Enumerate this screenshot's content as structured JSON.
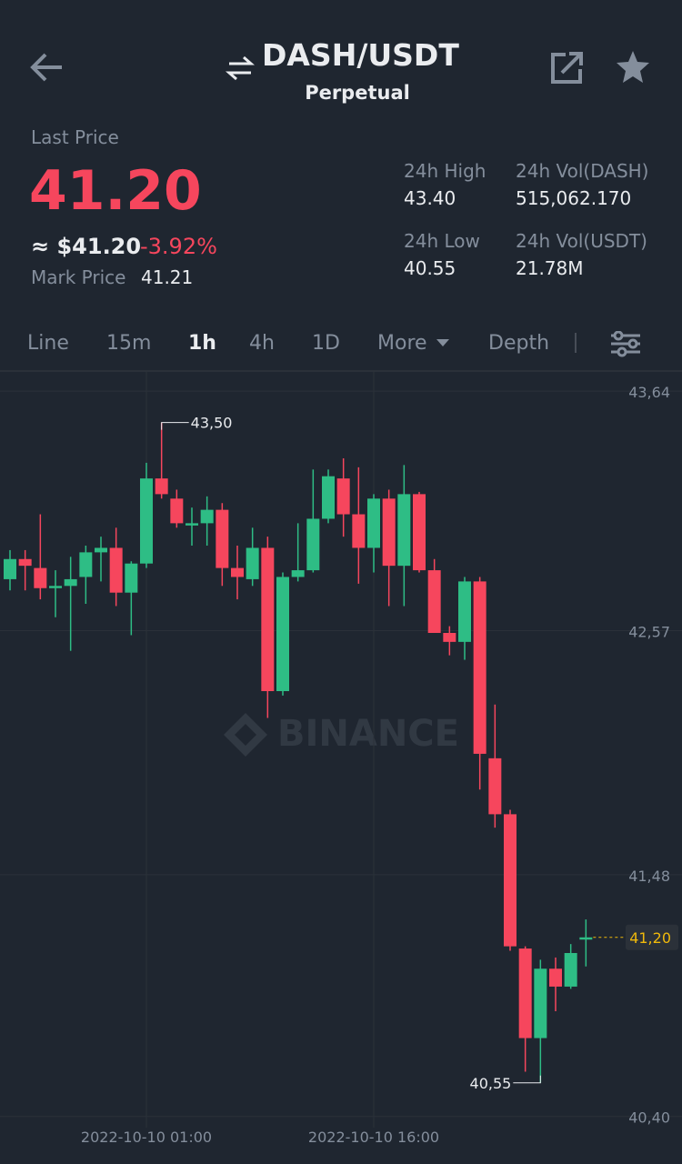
{
  "header": {
    "title": "DASH/USDT",
    "subtitle": "Perpetual"
  },
  "ticker": {
    "last_price_label": "Last Price",
    "last_price": "41.20",
    "approx_price": "≈ $41.20",
    "change": "-3.92%",
    "mark_price_label": "Mark Price",
    "mark_price": "41.21"
  },
  "stats": [
    {
      "label": "24h High",
      "value": "43.40"
    },
    {
      "label": "24h Vol(DASH)",
      "value": "515,062.170"
    },
    {
      "label": "24h Low",
      "value": "40.55"
    },
    {
      "label": "24h Vol(USDT)",
      "value": "21.78M"
    }
  ],
  "tabs": [
    "Line",
    "15m",
    "1h",
    "4h",
    "1D",
    "More",
    "Depth"
  ],
  "active_tab": 2,
  "chart_data": {
    "type": "candlestick",
    "watermark": "BINANCE",
    "up_color": "#2ebd85",
    "down_color": "#f6465d",
    "categories": [
      null,
      null,
      null,
      null,
      null,
      null,
      null,
      null,
      null,
      "2022-10-10 01:00",
      null,
      null,
      null,
      null,
      null,
      null,
      null,
      null,
      null,
      null,
      null,
      null,
      null,
      null,
      "2022-10-10 16:00",
      null,
      null,
      null,
      null,
      null,
      null,
      null,
      null,
      null,
      null,
      null,
      null,
      null,
      null
    ],
    "open": [
      42.8,
      42.89,
      42.85,
      42.76,
      42.77,
      42.81,
      42.92,
      42.94,
      42.74,
      42.87,
      43.25,
      43.16,
      43.04,
      43.05,
      43.11,
      42.85,
      42.8,
      42.94,
      42.3,
      42.81,
      42.84,
      43.07,
      43.25,
      43.09,
      42.94,
      43.16,
      42.86,
      43.18,
      42.84,
      42.56,
      42.52,
      42.79,
      42.0,
      41.75,
      41.15,
      40.75,
      41.06,
      40.98,
      41.19
    ],
    "high": [
      42.93,
      42.93,
      43.09,
      42.84,
      42.9,
      42.95,
      42.99,
      43.03,
      42.88,
      43.32,
      43.5,
      43.2,
      43.12,
      43.17,
      43.14,
      42.95,
      43.03,
      42.99,
      42.83,
      43.05,
      43.29,
      43.29,
      43.34,
      43.3,
      43.18,
      43.2,
      43.31,
      43.19,
      42.89,
      42.59,
      42.81,
      42.81,
      42.24,
      41.77,
      41.16,
      41.1,
      41.11,
      41.17,
      41.28
    ],
    "low": [
      42.75,
      42.75,
      42.71,
      42.63,
      42.48,
      42.69,
      42.79,
      42.68,
      42.55,
      42.85,
      43.16,
      43.03,
      42.95,
      42.95,
      42.77,
      42.71,
      42.77,
      42.18,
      42.28,
      42.79,
      42.83,
      43.05,
      42.99,
      42.78,
      42.83,
      42.68,
      42.68,
      42.83,
      42.56,
      42.46,
      42.44,
      41.86,
      41.69,
      41.14,
      40.6,
      40.55,
      40.87,
      40.97,
      41.07
    ],
    "close": [
      42.89,
      42.86,
      42.76,
      42.77,
      42.8,
      42.92,
      42.94,
      42.74,
      42.87,
      43.25,
      43.18,
      43.05,
      43.05,
      43.11,
      42.85,
      42.81,
      42.94,
      42.3,
      42.81,
      42.84,
      43.07,
      43.26,
      43.09,
      42.94,
      43.16,
      42.86,
      43.18,
      42.84,
      42.56,
      42.52,
      42.79,
      42.02,
      41.75,
      41.16,
      40.75,
      41.06,
      40.98,
      41.13,
      41.2
    ],
    "ylim": [
      40.35,
      43.73
    ],
    "yticks": [
      {
        "value": 43.64,
        "label": "43,64"
      },
      {
        "value": 42.57,
        "label": "42,57"
      },
      {
        "value": 41.48,
        "label": "41,48"
      },
      {
        "value": 40.4,
        "label": "40,40"
      }
    ],
    "high_label": {
      "value": 43.5,
      "label": "43,50"
    },
    "low_label": {
      "value": 40.55,
      "label": "40,55"
    },
    "last_label": {
      "value": 41.2,
      "label": "41,20"
    },
    "grid": true
  }
}
